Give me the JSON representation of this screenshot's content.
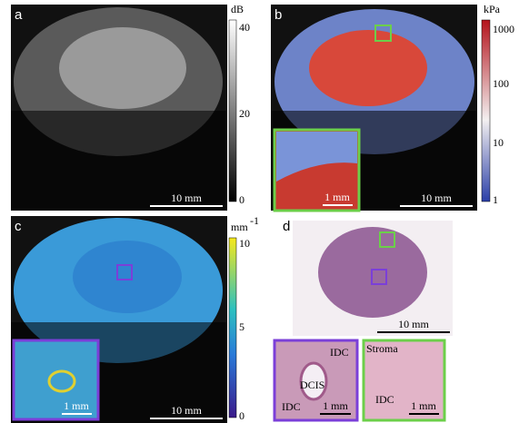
{
  "panels": [
    {
      "label": "a",
      "scale_bar": "10 mm",
      "colorbar": {
        "unit": "dB",
        "ticks": [
          40,
          20,
          0
        ]
      }
    },
    {
      "label": "b",
      "scale_bar": "10 mm",
      "colorbar": {
        "unit": "kPa",
        "ticks": [
          1000,
          100,
          10,
          1
        ]
      },
      "inset": {
        "scale_bar": "1 mm"
      }
    },
    {
      "label": "c",
      "scale_bar": "10 mm",
      "colorbar": {
        "unit": "mm",
        "unit_superscript": "-1",
        "ticks": [
          10,
          5,
          0
        ]
      },
      "inset": {
        "scale_bar": "1 mm"
      }
    },
    {
      "label": "d",
      "scale_bar": "10 mm",
      "insets": [
        {
          "labels": [
            "IDC",
            "DCIS",
            "IDC"
          ],
          "scale_bar": "1 mm"
        },
        {
          "labels": [
            "Stroma",
            "IDC"
          ],
          "scale_bar": "1 mm"
        }
      ]
    }
  ]
}
